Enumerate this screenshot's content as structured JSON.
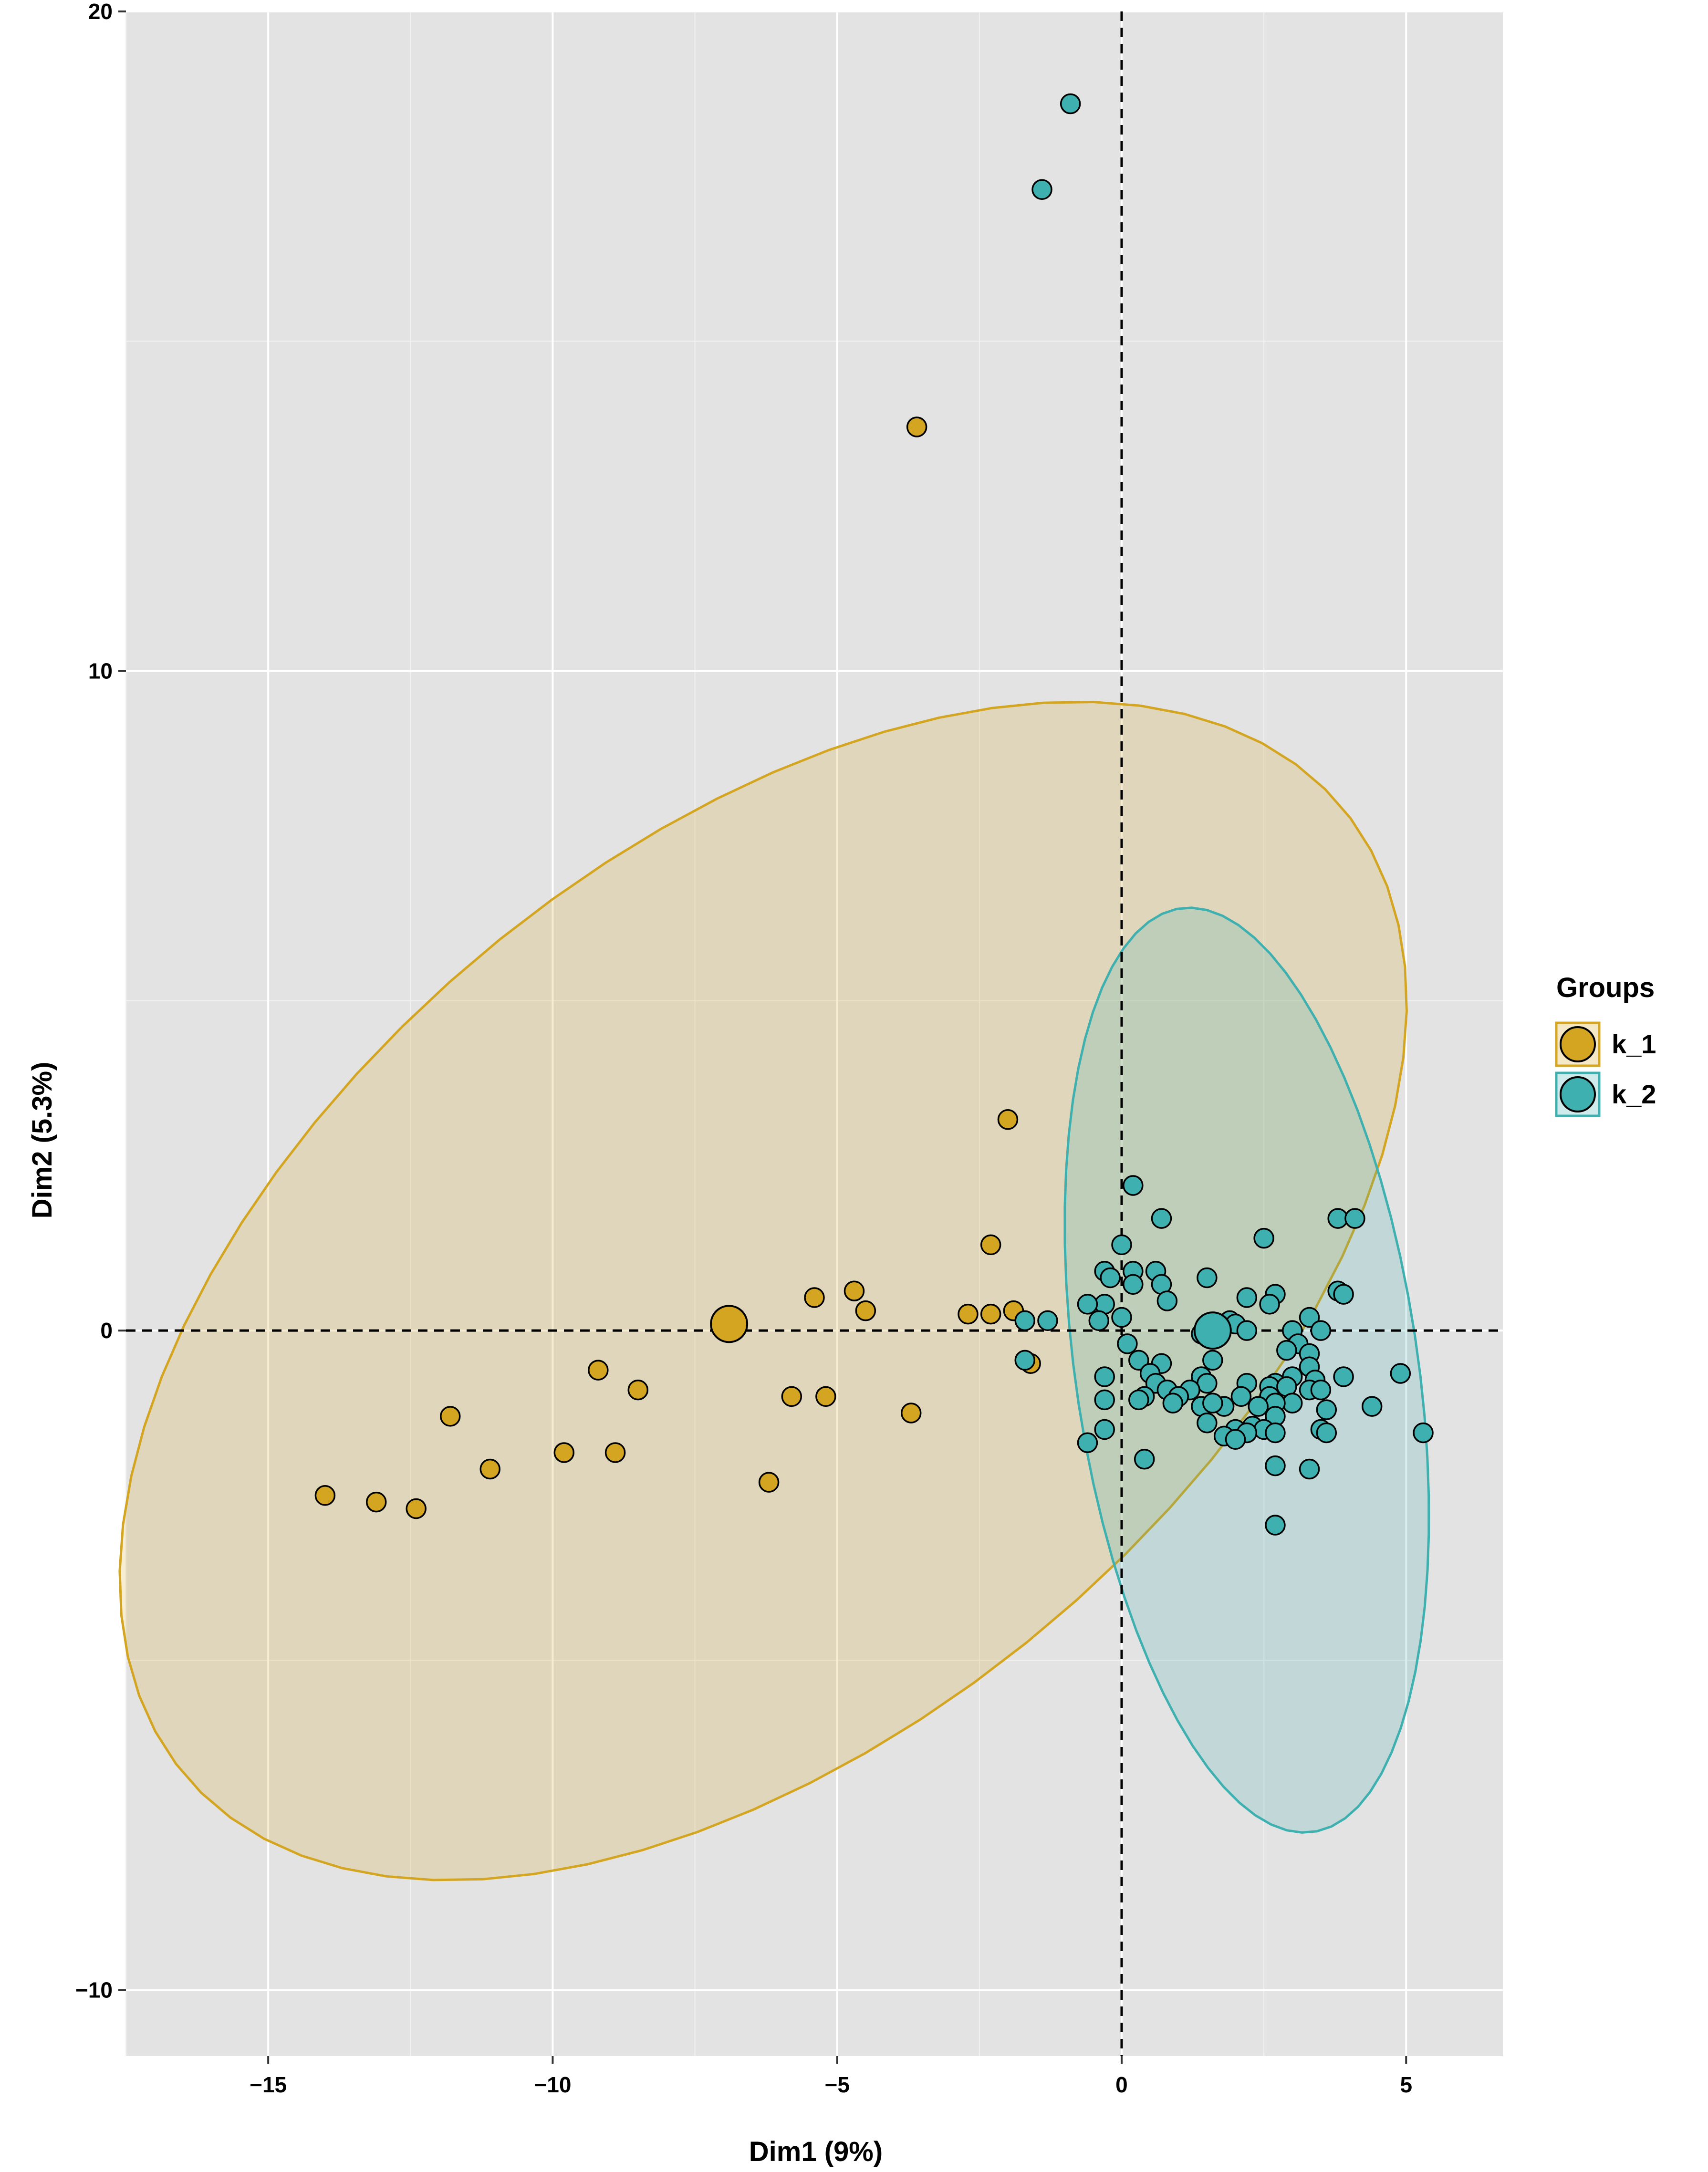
{
  "chart_data": {
    "type": "scatter",
    "xlabel": "Dim1 (9%)",
    "ylabel": "Dim2 (5.3%)",
    "xlim": [
      -17.5,
      6.7
    ],
    "ylim": [
      -11.0,
      20.0
    ],
    "x_ticks": [
      -15,
      -10,
      -5,
      0,
      5
    ],
    "y_ticks": [
      -10,
      0,
      10,
      20
    ],
    "x_tick_labels": [
      "−15",
      "−10",
      "−5",
      "0",
      "5"
    ],
    "y_tick_labels": [
      "−10",
      "0",
      "10",
      "20"
    ],
    "grid": true,
    "reference_lines": {
      "x": 0,
      "y": 0,
      "style": "dashed"
    },
    "legend": {
      "title": "Groups",
      "position": "right"
    },
    "series": [
      {
        "name": "k_1",
        "color": "#D4A520",
        "centroid": [
          -6.9,
          0.1
        ],
        "ellipse": {
          "cx": -6.3,
          "cy": 0.6,
          "rx": 12.6,
          "ry": 7.0,
          "angle_deg": 32
        },
        "points": [
          [
            -3.6,
            13.7
          ],
          [
            -2.0,
            3.2
          ],
          [
            -2.3,
            1.3
          ],
          [
            -5.4,
            0.5
          ],
          [
            -4.7,
            0.6
          ],
          [
            -4.5,
            0.3
          ],
          [
            -2.7,
            0.25
          ],
          [
            -2.3,
            0.25
          ],
          [
            -1.9,
            0.3
          ],
          [
            -1.6,
            -0.5
          ],
          [
            -9.2,
            -0.6
          ],
          [
            -8.5,
            -0.9
          ],
          [
            -5.8,
            -1.0
          ],
          [
            -5.2,
            -1.0
          ],
          [
            -3.7,
            -1.25
          ],
          [
            -11.8,
            -1.3
          ],
          [
            -9.8,
            -1.85
          ],
          [
            -8.9,
            -1.85
          ],
          [
            -11.1,
            -2.1
          ],
          [
            -6.2,
            -2.3
          ],
          [
            -14.0,
            -2.5
          ],
          [
            -13.1,
            -2.6
          ],
          [
            -12.4,
            -2.7
          ]
        ]
      },
      {
        "name": "k_2",
        "color": "#3FB0B0",
        "centroid": [
          1.6,
          0.0
        ],
        "ellipse": {
          "cx": 2.2,
          "cy": -0.6,
          "rx": 3.0,
          "ry": 7.1,
          "angle_deg": 10
        },
        "points": [
          [
            -0.9,
            18.6
          ],
          [
            -1.4,
            17.3
          ],
          [
            0.2,
            2.2
          ],
          [
            0.7,
            1.7
          ],
          [
            3.8,
            1.7
          ],
          [
            4.1,
            1.7
          ],
          [
            2.5,
            1.4
          ],
          [
            0.0,
            1.3
          ],
          [
            0.6,
            0.9
          ],
          [
            -0.3,
            0.9
          ],
          [
            -0.2,
            0.8
          ],
          [
            0.2,
            0.9
          ],
          [
            0.2,
            0.7
          ],
          [
            0.7,
            0.7
          ],
          [
            1.5,
            0.8
          ],
          [
            3.8,
            0.6
          ],
          [
            3.9,
            0.55
          ],
          [
            2.2,
            0.5
          ],
          [
            2.7,
            0.55
          ],
          [
            2.6,
            0.4
          ],
          [
            0.8,
            0.45
          ],
          [
            -0.3,
            0.4
          ],
          [
            -0.6,
            0.4
          ],
          [
            -0.4,
            0.15
          ],
          [
            0.0,
            0.2
          ],
          [
            3.3,
            0.2
          ],
          [
            -1.7,
            0.15
          ],
          [
            -1.3,
            0.15
          ],
          [
            1.9,
            0.15
          ],
          [
            2.0,
            0.1
          ],
          [
            1.6,
            0.1
          ],
          [
            1.4,
            -0.05
          ],
          [
            2.2,
            0.0
          ],
          [
            0.1,
            -0.2
          ],
          [
            3.0,
            0.0
          ],
          [
            3.5,
            0.0
          ],
          [
            3.1,
            -0.2
          ],
          [
            2.9,
            -0.3
          ],
          [
            3.3,
            -0.35
          ],
          [
            -1.7,
            -0.45
          ],
          [
            0.3,
            -0.45
          ],
          [
            0.7,
            -0.5
          ],
          [
            1.6,
            -0.45
          ],
          [
            3.3,
            -0.55
          ],
          [
            4.9,
            -0.65
          ],
          [
            3.9,
            -0.7
          ],
          [
            0.5,
            -0.65
          ],
          [
            3.0,
            -0.7
          ],
          [
            -0.3,
            -0.7
          ],
          [
            0.6,
            -0.8
          ],
          [
            1.4,
            -0.7
          ],
          [
            2.2,
            -0.8
          ],
          [
            3.4,
            -0.75
          ],
          [
            2.7,
            -0.8
          ],
          [
            2.6,
            -0.85
          ],
          [
            0.8,
            -0.9
          ],
          [
            1.5,
            -0.8
          ],
          [
            1.2,
            -0.9
          ],
          [
            0.4,
            -1.0
          ],
          [
            2.9,
            -0.85
          ],
          [
            3.3,
            -0.9
          ],
          [
            3.5,
            -0.9
          ],
          [
            1.0,
            -1.0
          ],
          [
            -0.3,
            -1.05
          ],
          [
            1.8,
            -1.15
          ],
          [
            2.1,
            -1.0
          ],
          [
            2.6,
            -1.0
          ],
          [
            3.0,
            -1.1
          ],
          [
            0.3,
            -1.05
          ],
          [
            2.7,
            -1.1
          ],
          [
            1.4,
            -1.15
          ],
          [
            1.6,
            -1.1
          ],
          [
            0.9,
            -1.1
          ],
          [
            2.4,
            -1.15
          ],
          [
            4.4,
            -1.15
          ],
          [
            3.6,
            -1.2
          ],
          [
            2.7,
            -1.3
          ],
          [
            3.5,
            -1.5
          ],
          [
            1.5,
            -1.4
          ],
          [
            2.3,
            -1.45
          ],
          [
            2.5,
            -1.5
          ],
          [
            -0.3,
            -1.5
          ],
          [
            2.0,
            -1.5
          ],
          [
            2.7,
            -1.55
          ],
          [
            3.6,
            -1.55
          ],
          [
            2.2,
            -1.55
          ],
          [
            5.3,
            -1.55
          ],
          [
            1.8,
            -1.6
          ],
          [
            2.0,
            -1.65
          ],
          [
            -0.6,
            -1.7
          ],
          [
            0.4,
            -1.95
          ],
          [
            2.7,
            -2.05
          ],
          [
            3.3,
            -2.1
          ],
          [
            2.7,
            -2.95
          ]
        ]
      }
    ]
  },
  "legend_swatches": [
    {
      "label": "k_1",
      "color": "#D4A520"
    },
    {
      "label": "k_2",
      "color": "#3FB0B0"
    }
  ]
}
